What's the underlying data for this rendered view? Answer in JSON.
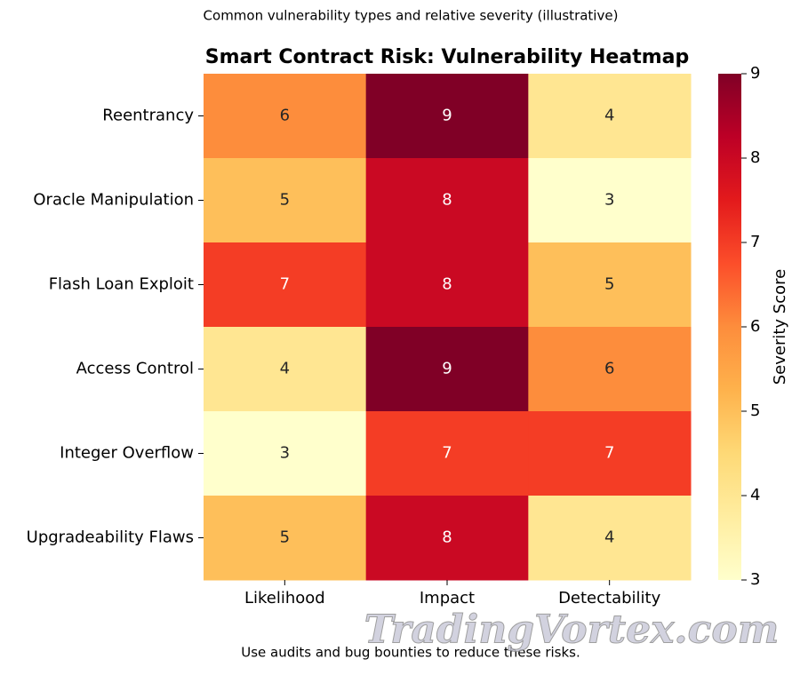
{
  "chart_data": {
    "type": "heatmap",
    "subtitle": "Common vulnerability types and relative severity (illustrative)",
    "title": "Smart Contract Risk: Vulnerability Heatmap",
    "x_categories": [
      "Likelihood",
      "Impact",
      "Detectability"
    ],
    "y_categories": [
      "Reentrancy",
      "Oracle Manipulation",
      "Flash Loan Exploit",
      "Access Control",
      "Integer Overflow",
      "Upgradeability Flaws"
    ],
    "values": [
      [
        6,
        9,
        4
      ],
      [
        5,
        8,
        3
      ],
      [
        7,
        8,
        5
      ],
      [
        4,
        9,
        6
      ],
      [
        3,
        7,
        7
      ],
      [
        5,
        8,
        4
      ]
    ],
    "colormap": [
      "#ffffcc",
      "#ffeda0",
      "#fed976",
      "#feb24c",
      "#fd8d3c",
      "#fc4e2a",
      "#e31a1c",
      "#bd0026",
      "#800026"
    ],
    "clim": [
      3,
      9
    ],
    "cticks": [
      3,
      4,
      5,
      6,
      7,
      8,
      9
    ],
    "colorbar_label": "Severity Score",
    "note": "Use audits and bug bounties to reduce these risks.",
    "watermark": "TradingVortex.com"
  }
}
